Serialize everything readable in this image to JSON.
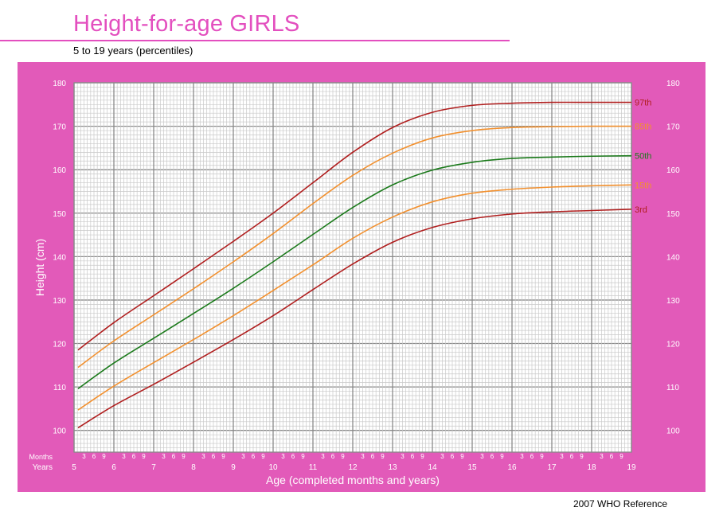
{
  "header": {
    "title": "Height-for-age  GIRLS",
    "subtitle": "5 to 19 years (percentiles)"
  },
  "footer": {
    "reference": "2007 WHO Reference"
  },
  "colors": {
    "accent": "#e34fbf",
    "panel": "#e25ab9",
    "p3": "#b01e1e",
    "p15": "#f2902e",
    "p50": "#1b7a1b",
    "p85": "#f2902e",
    "p97": "#b01e1e"
  },
  "chart_data": {
    "type": "line",
    "title": "Height-for-age  GIRLS",
    "subtitle": "5 to 19 years (percentiles)",
    "xlabel": "Age (completed months and years)",
    "ylabel": "Height (cm)",
    "xlim": [
      5,
      19
    ],
    "ylim": [
      95,
      180
    ],
    "y_ticks": [
      100,
      110,
      120,
      130,
      140,
      150,
      160,
      170,
      180
    ],
    "x_ticks": [
      5,
      6,
      7,
      8,
      9,
      10,
      11,
      12,
      13,
      14,
      15,
      16,
      17,
      18,
      19
    ],
    "x_tick_labels": [
      "5",
      "6",
      "7",
      "8",
      "9",
      "10",
      "11",
      "12",
      "13",
      "14",
      "15",
      "16",
      "17",
      "18",
      "19"
    ],
    "month_labels": [
      "3",
      "6",
      "9"
    ],
    "months_row_label": "Months",
    "years_row_label": "Years",
    "grid": true,
    "x": [
      5,
      6,
      7,
      8,
      9,
      10,
      11,
      12,
      13,
      14,
      15,
      16,
      17,
      18,
      19
    ],
    "series": [
      {
        "name": "97th",
        "color": "#b01e1e",
        "values": [
          118.5,
          124.8,
          131.0,
          137.2,
          143.5,
          150.0,
          157.0,
          164.0,
          169.7,
          173.2,
          174.8,
          175.3,
          175.5,
          175.5,
          175.5
        ]
      },
      {
        "name": "85th",
        "color": "#f2902e",
        "values": [
          114.5,
          120.6,
          126.6,
          132.6,
          138.8,
          145.3,
          152.2,
          158.7,
          163.8,
          167.3,
          169.0,
          169.7,
          169.9,
          170.0,
          170.0
        ]
      },
      {
        "name": "50th",
        "color": "#1b7a1b",
        "values": [
          109.6,
          115.5,
          121.2,
          126.9,
          132.7,
          138.8,
          145.1,
          151.3,
          156.5,
          159.9,
          161.7,
          162.6,
          162.9,
          163.1,
          163.2
        ]
      },
      {
        "name": "15th",
        "color": "#f2902e",
        "values": [
          104.7,
          110.2,
          115.6,
          120.9,
          126.4,
          132.2,
          138.1,
          144.2,
          149.1,
          152.6,
          154.6,
          155.5,
          156.0,
          156.3,
          156.5
        ]
      },
      {
        "name": "3rd",
        "color": "#b01e1e",
        "values": [
          100.6,
          105.7,
          110.6,
          115.7,
          120.9,
          126.4,
          132.4,
          138.3,
          143.3,
          146.7,
          148.7,
          149.8,
          150.3,
          150.6,
          150.9
        ]
      }
    ]
  }
}
